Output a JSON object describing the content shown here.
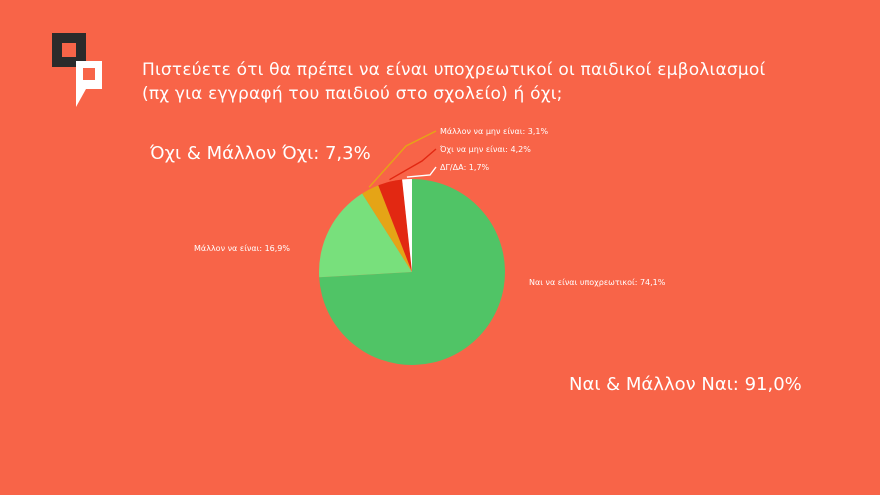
{
  "title": {
    "line1": "Πιστεύετε ότι θα πρέπει να είναι υποχρεωτικοί οι παιδικοί εμβολιασμοί",
    "line2": "(πχ για εγγραφή του παιδιού στο σχολείο) ή όχι;"
  },
  "summary": {
    "no": "Όχι & Μάλλον Όχι: 7,3%",
    "yes": "Ναι & Μάλλον Ναι: 91,0%"
  },
  "colors": {
    "background": "#f86448",
    "logo_dark": "#2b2b2b",
    "logo_light": "#ffffff"
  },
  "chart_data": {
    "type": "pie",
    "slices": [
      {
        "label": "Ναι να είναι υποχρεωτικοί: 74,1%",
        "value": 74.1,
        "color": "#50c466"
      },
      {
        "label": "Μάλλον να είναι: 16,9%",
        "value": 16.9,
        "color": "#78e07c"
      },
      {
        "label": "Μάλλον να μην είναι: 3,1%",
        "value": 3.1,
        "color": "#e5a416"
      },
      {
        "label": "Όχι να μην είναι: 4,2%",
        "value": 4.2,
        "color": "#e22812"
      },
      {
        "label": "ΔΓ/ΔΑ: 1,7%",
        "value": 1.7,
        "color": "#ffffff"
      }
    ]
  }
}
